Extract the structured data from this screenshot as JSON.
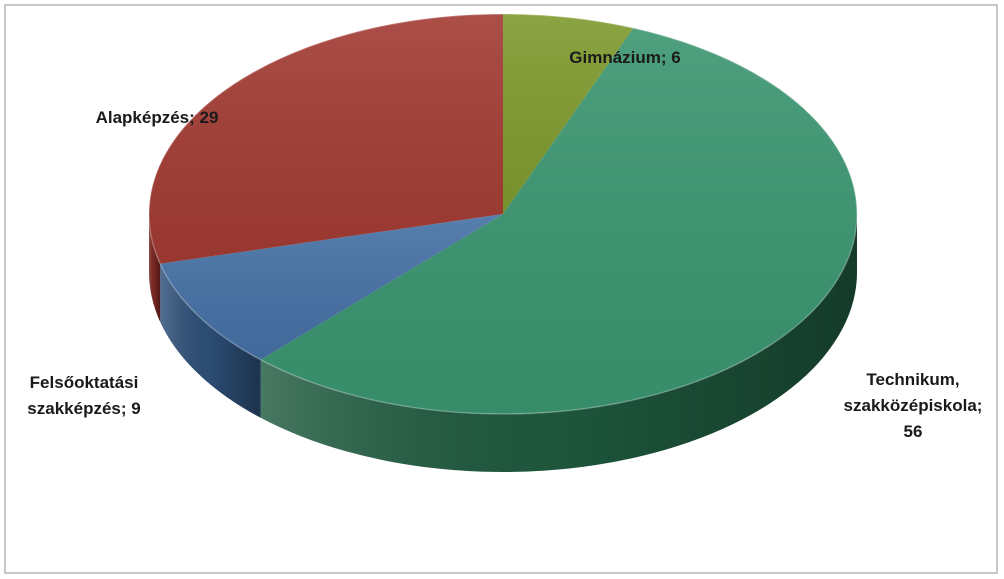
{
  "chart_data": {
    "type": "pie",
    "style": "3d",
    "title": "",
    "slices": [
      {
        "label": "Gimnázium",
        "lines": [
          "Gimnázium; 6"
        ],
        "value": 6,
        "color": "#7f9a2e",
        "side": "#5c6f1f"
      },
      {
        "label": "Technikum, szakközépiskola",
        "lines": [
          "Technikum,",
          "szakközépiskola;",
          "56"
        ],
        "value": 56,
        "color": "#3a9570",
        "side": "#1f5a3f"
      },
      {
        "label": "Felsőoktatási szakképzés",
        "lines": [
          "Felsőoktatási",
          "szakképzés; 9"
        ],
        "value": 9,
        "color": "#4571a5",
        "side": "#2d4f78"
      },
      {
        "label": "Alapképzés",
        "lines": [
          "Alapképzés; 29"
        ],
        "value": 29,
        "color": "#a23b33",
        "side": "#7a2722"
      }
    ],
    "start_angle_deg": 0,
    "direction": "clockwise",
    "legend": "none",
    "data_labels": "outside, category; value"
  }
}
